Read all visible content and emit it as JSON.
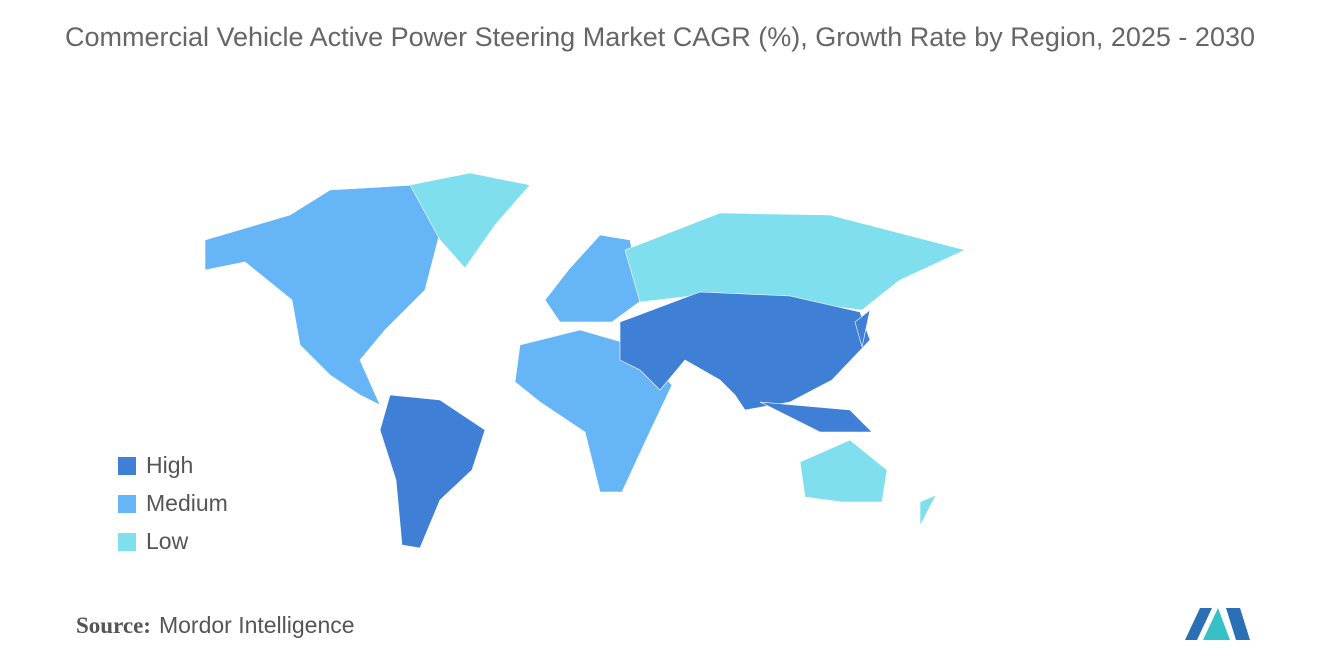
{
  "title": "Commercial Vehicle Active Power Steering Market CAGR (%), Growth Rate by Region, 2025 - 2030",
  "legend": [
    {
      "label": "High",
      "color": "#3f7fd6"
    },
    {
      "label": "Medium",
      "color": "#66b5f6"
    },
    {
      "label": "Low",
      "color": "#7fdfee"
    }
  ],
  "source": {
    "label": "Source:",
    "text": "Mordor Intelligence"
  }
}
